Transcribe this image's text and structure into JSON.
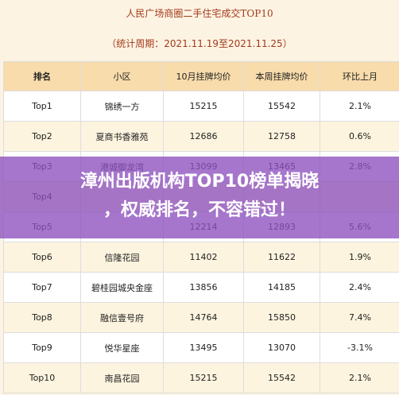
{
  "header": {
    "title": "人民广场商圈二手住宅成交TOP10",
    "subtitle": "（统计周期：2021.11.19至2021.11.25）"
  },
  "table": {
    "columns": [
      "排名",
      "小区",
      "10月挂牌均价",
      "本周挂牌均价",
      "环比上月"
    ],
    "rows": [
      [
        "Top1",
        "锦绣一方",
        "15215",
        "15542",
        "2.1%"
      ],
      [
        "Top2",
        "夏商书香雅苑",
        "12686",
        "12758",
        "0.6%"
      ],
      [
        "Top3",
        "港城御龙湾",
        "13099",
        "13465",
        "2.8%"
      ],
      [
        "Top4"
      ],
      [
        "Top5",
        null,
        "12214",
        "12893",
        "5.6%"
      ],
      [
        "Top6",
        "信隆花园",
        "11402",
        "11622",
        "1.9%"
      ],
      [
        "Top7",
        "碧桂园城央金座",
        "13856",
        "14185",
        "2.4%"
      ],
      [
        "Top8",
        "融信壹号府",
        "14764",
        "15850",
        "7.4%"
      ],
      [
        "Top9",
        "悦华星座",
        "13495",
        "13070",
        "-3.1%"
      ],
      [
        "Top10",
        "南昌花园",
        "15215",
        "15542",
        "2.1%"
      ]
    ]
  },
  "banner": {
    "lines": [
      "漳州出版机构TOP10榜单揭晓",
      "，权威排名，不容错过！"
    ]
  }
}
